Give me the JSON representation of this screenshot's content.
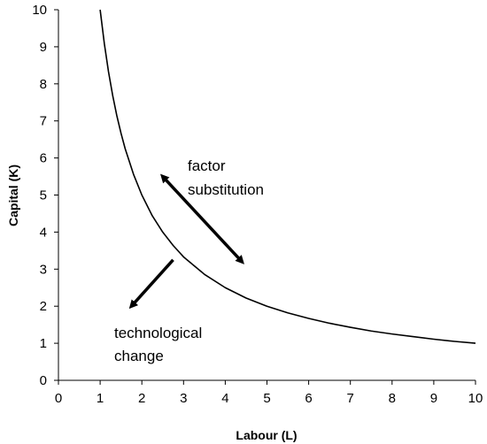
{
  "chart_data": {
    "type": "line",
    "title": "",
    "xlabel": "Labour (L)",
    "ylabel": "Capital (K)",
    "xlim": [
      0,
      10
    ],
    "ylim": [
      0,
      10
    ],
    "x_ticks": [
      "0",
      "1",
      "2",
      "3",
      "4",
      "5",
      "6",
      "7",
      "8",
      "9",
      "10"
    ],
    "y_ticks": [
      "0",
      "1",
      "2",
      "3",
      "4",
      "5",
      "6",
      "7",
      "8",
      "9",
      "10"
    ],
    "grid": false,
    "legend": "none",
    "series": [
      {
        "x": [
          1,
          1.1,
          1.2,
          1.3,
          1.4,
          1.5,
          1.6,
          1.8,
          2,
          2.25,
          2.5,
          2.75,
          3,
          3.5,
          4,
          4.5,
          5,
          5.5,
          6,
          6.5,
          7,
          7.5,
          8,
          8.5,
          9,
          9.5,
          10
        ],
        "y": [
          10,
          9.09,
          8.33,
          7.69,
          7.14,
          6.67,
          6.25,
          5.56,
          5,
          4.44,
          4,
          3.64,
          3.33,
          2.86,
          2.5,
          2.22,
          2,
          1.82,
          1.67,
          1.54,
          1.43,
          1.33,
          1.25,
          1.18,
          1.11,
          1.05,
          1
        ],
        "color": "#000000"
      }
    ],
    "annotations": [
      {
        "lines": [
          "factor",
          "substitution"
        ]
      },
      {
        "lines": [
          "technological",
          "change"
        ]
      }
    ],
    "arrows": [
      {
        "name": "factor-substitution-arrow",
        "from": [
          2.5,
          5.5
        ],
        "to": [
          4.4,
          3.2
        ],
        "double": true
      },
      {
        "name": "technological-change-arrow",
        "from": [
          2.75,
          3.25
        ],
        "to": [
          1.75,
          2.0
        ],
        "double": false
      }
    ]
  }
}
